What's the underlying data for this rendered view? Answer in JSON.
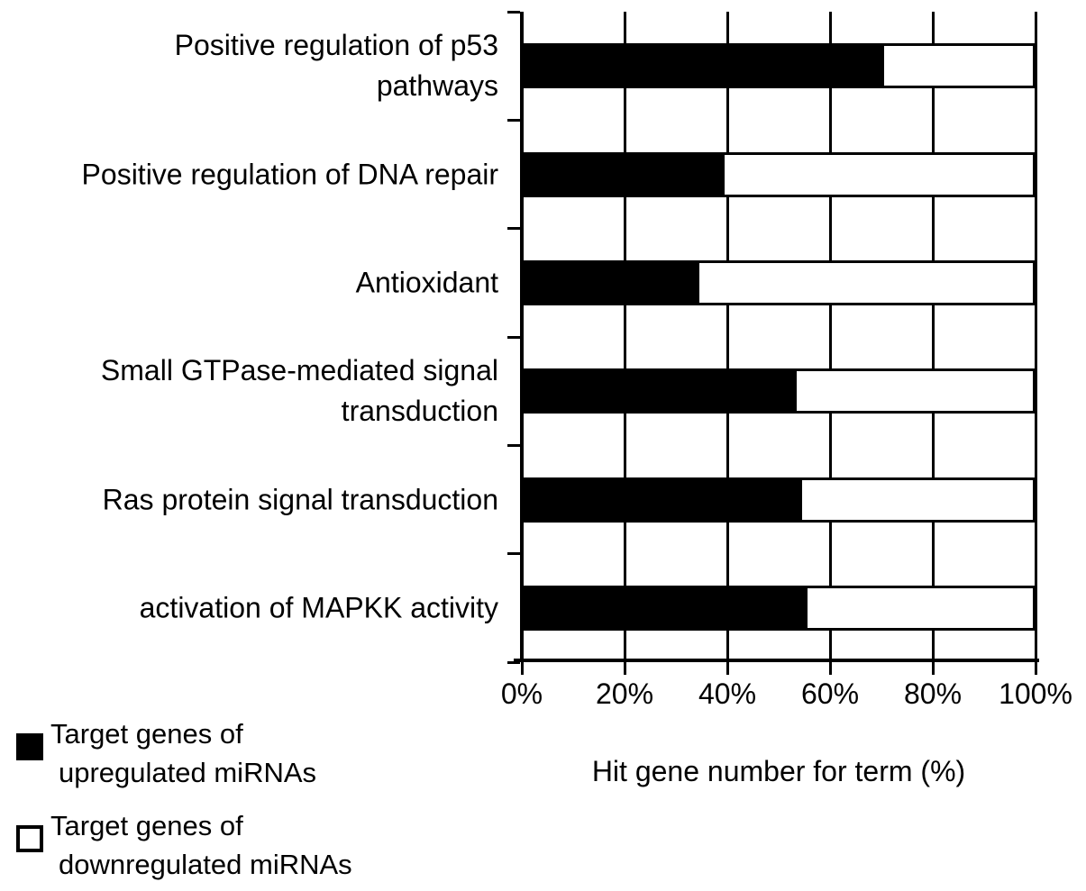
{
  "figure": {
    "x_tick_labels": [
      "0%",
      "20%",
      "40%",
      "60%",
      "80%",
      "100%"
    ]
  },
  "legend": {
    "entries": [
      {
        "swatch": "black-filled-square",
        "line1": "Target genes of",
        "line2": "upregulated miRNAs"
      },
      {
        "swatch": "white-outlined-square",
        "line1": "Target genes of",
        "line2": "downregulated miRNAs"
      }
    ]
  },
  "chart_data": {
    "type": "bar",
    "orientation": "horizontal",
    "stacked": true,
    "stack_total_percent": 100,
    "categories": [
      "Positive regulation of p53 pathways",
      "Positive regulation of DNA repair",
      "Antioxidant",
      "Small GTPase-mediated signal transduction",
      "Ras protein signal transduction",
      "activation of MAPKK activity"
    ],
    "categories_display_lines": [
      [
        "Positive regulation of p53",
        "pathways"
      ],
      [
        "Positive regulation of DNA repair"
      ],
      [
        "Antioxidant"
      ],
      [
        "Small GTPase-mediated signal",
        "transduction"
      ],
      [
        "Ras protein signal transduction"
      ],
      [
        "activation of MAPKK activity"
      ]
    ],
    "series": [
      {
        "name": "Target genes of upregulated miRNAs",
        "color": "#000000",
        "values": [
          70,
          39,
          34,
          53,
          54,
          55
        ]
      },
      {
        "name": "Target genes of downregulated miRNAs",
        "color": "#ffffff",
        "values": [
          30,
          61,
          66,
          47,
          46,
          45
        ]
      }
    ],
    "xlabel": "Hit gene number for term (%)",
    "xlim": [
      0,
      100
    ],
    "x_ticks_percent": [
      0,
      20,
      40,
      60,
      80,
      100
    ],
    "grid": "vertical gridlines at 20% intervals, full plot height",
    "legend_position": "bottom-left",
    "colors": {
      "foreground": "#000000",
      "background": "#ffffff"
    }
  }
}
